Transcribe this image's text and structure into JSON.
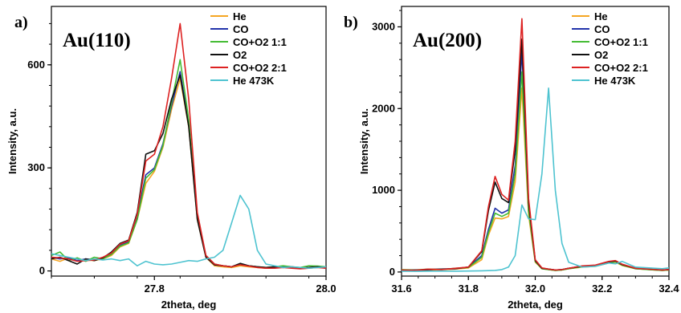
{
  "chart_data": [
    {
      "type": "line",
      "panel": "a)",
      "title": "Au(110)",
      "xlabel": "2theta, deg",
      "ylabel": "Intensity, a.u.",
      "xlim": [
        27.68,
        28.0
      ],
      "ylim": [
        -15,
        770
      ],
      "xticks": [
        27.8,
        28.0
      ],
      "xtick_labels": [
        "27.8",
        "28.0"
      ],
      "yticks": [
        0,
        300,
        600
      ],
      "ytick_labels": [
        "0",
        "300",
        "600"
      ],
      "legend_position": "top-right",
      "series": [
        {
          "name": "He",
          "color": "#f5a623",
          "x": [
            27.68,
            27.69,
            27.7,
            27.71,
            27.72,
            27.73,
            27.74,
            27.75,
            27.76,
            27.77,
            27.78,
            27.79,
            27.8,
            27.81,
            27.82,
            27.83,
            27.84,
            27.85,
            27.86,
            27.87,
            27.88,
            27.89,
            27.9,
            27.91,
            27.92,
            27.93,
            27.94,
            27.95,
            27.96,
            27.97,
            27.98,
            27.99,
            28.0
          ],
          "y": [
            35,
            28,
            38,
            30,
            32,
            30,
            35,
            45,
            70,
            80,
            150,
            255,
            290,
            360,
            470,
            560,
            420,
            150,
            40,
            15,
            12,
            10,
            15,
            12,
            10,
            8,
            10,
            12,
            10,
            8,
            10,
            12,
            10
          ]
        },
        {
          "name": "CO",
          "color": "#2233aa",
          "x": [
            27.68,
            27.69,
            27.7,
            27.71,
            27.72,
            27.73,
            27.74,
            27.75,
            27.76,
            27.77,
            27.78,
            27.79,
            27.8,
            27.81,
            27.82,
            27.83,
            27.84,
            27.85,
            27.86,
            27.87,
            27.88,
            27.89,
            27.9,
            27.91,
            27.92,
            27.93,
            27.94,
            27.95,
            27.96,
            27.97,
            27.98,
            27.99,
            28.0
          ],
          "y": [
            40,
            35,
            38,
            30,
            35,
            32,
            38,
            50,
            75,
            85,
            160,
            280,
            300,
            370,
            480,
            580,
            430,
            160,
            42,
            18,
            15,
            12,
            20,
            15,
            12,
            8,
            10,
            12,
            10,
            8,
            10,
            12,
            8
          ]
        },
        {
          "name": "CO+O2 1:1",
          "color": "#44bb33",
          "x": [
            27.68,
            27.69,
            27.7,
            27.71,
            27.72,
            27.73,
            27.74,
            27.75,
            27.76,
            27.77,
            27.78,
            27.79,
            27.8,
            27.81,
            27.82,
            27.83,
            27.84,
            27.85,
            27.86,
            27.87,
            27.88,
            27.89,
            27.9,
            27.91,
            27.92,
            27.93,
            27.94,
            27.95,
            27.96,
            27.97,
            27.98,
            27.99,
            28.0
          ],
          "y": [
            45,
            55,
            30,
            38,
            28,
            40,
            35,
            48,
            72,
            82,
            150,
            270,
            295,
            365,
            490,
            615,
            440,
            155,
            45,
            20,
            15,
            12,
            18,
            15,
            12,
            10,
            12,
            15,
            12,
            10,
            15,
            14,
            12
          ]
        },
        {
          "name": "O2",
          "color": "#111111",
          "x": [
            27.68,
            27.69,
            27.7,
            27.71,
            27.72,
            27.73,
            27.74,
            27.75,
            27.76,
            27.77,
            27.78,
            27.79,
            27.8,
            27.81,
            27.82,
            27.83,
            27.84,
            27.85,
            27.86,
            27.87,
            27.88,
            27.89,
            27.9,
            27.91,
            27.92,
            27.93,
            27.94,
            27.95,
            27.96,
            27.97,
            27.98,
            27.99,
            28.0
          ],
          "y": [
            35,
            40,
            30,
            20,
            35,
            30,
            38,
            55,
            80,
            90,
            170,
            340,
            350,
            400,
            500,
            570,
            420,
            150,
            40,
            18,
            15,
            12,
            22,
            15,
            12,
            10,
            12,
            10,
            12,
            8,
            10,
            12,
            10
          ]
        },
        {
          "name": "CO+O2 2:1",
          "color": "#dd2222",
          "x": [
            27.68,
            27.69,
            27.7,
            27.71,
            27.72,
            27.73,
            27.74,
            27.75,
            27.76,
            27.77,
            27.78,
            27.79,
            27.8,
            27.81,
            27.82,
            27.83,
            27.84,
            27.85,
            27.86,
            27.87,
            27.88,
            27.89,
            27.9,
            27.91,
            27.92,
            27.93,
            27.94,
            27.95,
            27.96,
            27.97,
            27.98,
            27.99,
            28.0
          ],
          "y": [
            40,
            38,
            35,
            28,
            30,
            32,
            40,
            52,
            78,
            88,
            165,
            320,
            340,
            420,
            560,
            720,
            500,
            170,
            45,
            20,
            15,
            12,
            18,
            14,
            10,
            8,
            8,
            10,
            8,
            6,
            8,
            10,
            8
          ]
        },
        {
          "name": "He 473K",
          "color": "#4ec3d0",
          "x": [
            27.68,
            27.69,
            27.7,
            27.71,
            27.72,
            27.73,
            27.74,
            27.75,
            27.76,
            27.77,
            27.78,
            27.79,
            27.8,
            27.81,
            27.82,
            27.83,
            27.84,
            27.85,
            27.86,
            27.87,
            27.88,
            27.89,
            27.9,
            27.91,
            27.92,
            27.93,
            27.94,
            27.95,
            27.96,
            27.97,
            27.98,
            27.99,
            28.0
          ],
          "y": [
            50,
            45,
            40,
            35,
            30,
            35,
            32,
            35,
            30,
            35,
            15,
            28,
            20,
            18,
            20,
            25,
            30,
            28,
            35,
            40,
            60,
            140,
            220,
            180,
            60,
            20,
            15,
            10,
            12,
            10,
            8,
            10,
            12
          ]
        }
      ]
    },
    {
      "type": "line",
      "panel": "b)",
      "title": "Au(200)",
      "xlabel": "2theta, deg",
      "ylabel": "Intensity, a.u.",
      "xlim": [
        31.6,
        32.4
      ],
      "ylim": [
        -50,
        3250
      ],
      "xticks": [
        31.6,
        31.8,
        32.0,
        32.2,
        32.4
      ],
      "xtick_labels": [
        "31.6",
        "31.8",
        "32.0",
        "32.2",
        "32.4"
      ],
      "yticks": [
        0,
        1000,
        2000,
        3000
      ],
      "ytick_labels": [
        "0",
        "1000",
        "2000",
        "3000"
      ],
      "legend_position": "top-right",
      "series": [
        {
          "name": "He",
          "color": "#f5a623",
          "x": [
            31.6,
            31.64,
            31.68,
            31.72,
            31.76,
            31.8,
            31.84,
            31.86,
            31.88,
            31.9,
            31.92,
            31.94,
            31.96,
            31.98,
            32.0,
            32.02,
            32.04,
            32.06,
            32.08,
            32.1,
            32.14,
            32.18,
            32.22,
            32.24,
            32.26,
            32.3,
            32.34,
            32.38,
            32.4
          ],
          "y": [
            20,
            15,
            25,
            30,
            35,
            50,
            150,
            450,
            660,
            650,
            680,
            1100,
            2250,
            700,
            120,
            40,
            30,
            20,
            25,
            40,
            60,
            70,
            110,
            120,
            80,
            40,
            30,
            20,
            25
          ]
        },
        {
          "name": "CO",
          "color": "#2233aa",
          "x": [
            31.6,
            31.64,
            31.68,
            31.72,
            31.76,
            31.8,
            31.84,
            31.86,
            31.88,
            31.9,
            31.92,
            31.94,
            31.96,
            31.98,
            32.0,
            32.02,
            32.04,
            32.06,
            32.08,
            32.1,
            32.14,
            32.18,
            32.22,
            32.24,
            32.26,
            32.3,
            32.34,
            32.38,
            32.4
          ],
          "y": [
            25,
            20,
            30,
            35,
            40,
            60,
            200,
            520,
            780,
            720,
            760,
            1300,
            2700,
            800,
            140,
            45,
            35,
            25,
            30,
            45,
            70,
            80,
            120,
            130,
            90,
            45,
            35,
            25,
            30
          ]
        },
        {
          "name": "CO+O2 1:1",
          "color": "#44bb33",
          "x": [
            31.6,
            31.64,
            31.68,
            31.72,
            31.76,
            31.8,
            31.84,
            31.86,
            31.88,
            31.9,
            31.92,
            31.94,
            31.96,
            31.98,
            32.0,
            32.02,
            32.04,
            32.06,
            32.08,
            32.1,
            32.14,
            32.18,
            32.22,
            32.24,
            32.26,
            32.3,
            32.34,
            32.38,
            32.4
          ],
          "y": [
            30,
            25,
            35,
            30,
            45,
            55,
            180,
            480,
            720,
            680,
            720,
            1200,
            2450,
            750,
            130,
            40,
            30,
            20,
            25,
            40,
            65,
            75,
            115,
            125,
            85,
            40,
            30,
            20,
            25
          ]
        },
        {
          "name": "O2",
          "color": "#111111",
          "x": [
            31.6,
            31.64,
            31.68,
            31.72,
            31.76,
            31.8,
            31.84,
            31.86,
            31.88,
            31.9,
            31.92,
            31.94,
            31.96,
            31.98,
            32.0,
            32.02,
            32.04,
            32.06,
            32.08,
            32.1,
            32.14,
            32.18,
            32.22,
            32.24,
            32.26,
            32.3,
            32.34,
            32.38,
            32.4
          ],
          "y": [
            20,
            25,
            30,
            35,
            40,
            60,
            250,
            750,
            1100,
            900,
            850,
            1500,
            2850,
            850,
            140,
            45,
            35,
            25,
            30,
            45,
            70,
            80,
            125,
            135,
            90,
            45,
            35,
            25,
            30
          ]
        },
        {
          "name": "CO+O2 2:1",
          "color": "#dd2222",
          "x": [
            31.6,
            31.64,
            31.68,
            31.72,
            31.76,
            31.8,
            31.84,
            31.86,
            31.88,
            31.9,
            31.92,
            31.94,
            31.96,
            31.98,
            32.0,
            32.02,
            32.04,
            32.06,
            32.08,
            32.1,
            32.14,
            32.18,
            32.22,
            32.24,
            32.26,
            32.3,
            32.34,
            32.38,
            32.4
          ],
          "y": [
            25,
            20,
            35,
            30,
            45,
            60,
            260,
            800,
            1170,
            950,
            880,
            1600,
            3100,
            900,
            150,
            50,
            35,
            25,
            30,
            45,
            75,
            85,
            130,
            140,
            95,
            45,
            35,
            25,
            30
          ]
        },
        {
          "name": "He 473K",
          "color": "#4ec3d0",
          "x": [
            31.6,
            31.64,
            31.68,
            31.72,
            31.76,
            31.8,
            31.84,
            31.88,
            31.9,
            31.92,
            31.94,
            31.96,
            31.98,
            32.0,
            32.02,
            32.04,
            32.06,
            32.08,
            32.1,
            32.14,
            32.18,
            32.22,
            32.24,
            32.26,
            32.3,
            32.34,
            32.38,
            32.4
          ],
          "y": [
            10,
            8,
            10,
            12,
            10,
            12,
            15,
            20,
            30,
            60,
            200,
            820,
            650,
            640,
            1200,
            2250,
            1000,
            350,
            120,
            60,
            70,
            110,
            100,
            130,
            60,
            50,
            40,
            50
          ]
        }
      ]
    }
  ]
}
